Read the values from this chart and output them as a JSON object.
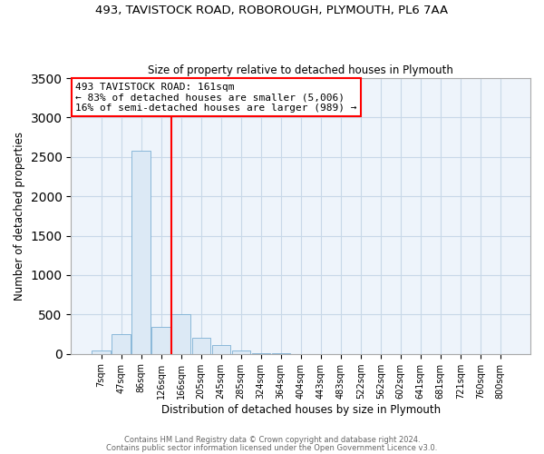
{
  "title_line1": "493, TAVISTOCK ROAD, ROBOROUGH, PLYMOUTH, PL6 7AA",
  "title_line2": "Size of property relative to detached houses in Plymouth",
  "xlabel": "Distribution of detached houses by size in Plymouth",
  "ylabel": "Number of detached properties",
  "bar_labels": [
    "7sqm",
    "47sqm",
    "86sqm",
    "126sqm",
    "166sqm",
    "205sqm",
    "245sqm",
    "285sqm",
    "324sqm",
    "364sqm",
    "404sqm",
    "443sqm",
    "483sqm",
    "522sqm",
    "562sqm",
    "602sqm",
    "641sqm",
    "681sqm",
    "721sqm",
    "760sqm",
    "800sqm"
  ],
  "bar_values": [
    45,
    250,
    2580,
    340,
    500,
    200,
    115,
    45,
    10,
    3,
    1,
    0,
    0,
    0,
    0,
    0,
    0,
    0,
    0,
    0,
    0
  ],
  "bar_face_color": "#dce9f5",
  "bar_edge_color": "#7bafd4",
  "red_line_index": 4,
  "annotation_title": "493 TAVISTOCK ROAD: 161sqm",
  "annotation_line1": "← 83% of detached houses are smaller (5,006)",
  "annotation_line2": "16% of semi-detached houses are larger (989) →",
  "ylim": [
    0,
    3500
  ],
  "yticks": [
    0,
    500,
    1000,
    1500,
    2000,
    2500,
    3000,
    3500
  ],
  "grid_color": "#c8d8e8",
  "footer1": "Contains HM Land Registry data © Crown copyright and database right 2024.",
  "footer2": "Contains public sector information licensed under the Open Government Licence v3.0."
}
